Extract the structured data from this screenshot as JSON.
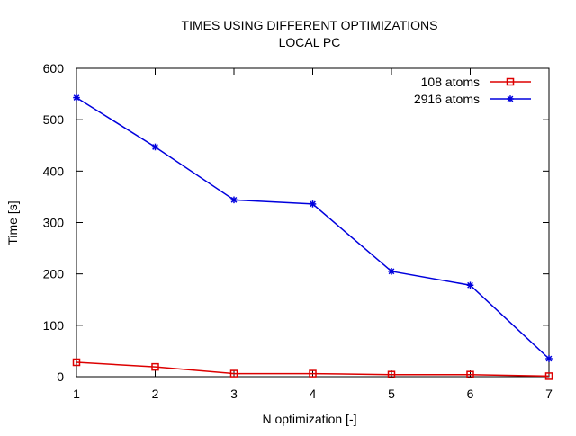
{
  "chart_data": {
    "type": "line",
    "title": "TIMES USING DIFFERENT OPTIMIZATIONS",
    "subtitle": "LOCAL PC",
    "xlabel": "N optimization [-]",
    "ylabel": "Time [s]",
    "xlim": [
      1,
      7
    ],
    "ylim": [
      0,
      600
    ],
    "xticks": [
      1,
      2,
      3,
      4,
      5,
      6,
      7
    ],
    "yticks": [
      0,
      100,
      200,
      300,
      400,
      500,
      600
    ],
    "grid": false,
    "legend_position": "top-right",
    "x": [
      1,
      2,
      3,
      4,
      5,
      6,
      7
    ],
    "series": [
      {
        "name": "108 atoms",
        "values": [
          28,
          19,
          6,
          6,
          4,
          4,
          1
        ],
        "color": "#dd0000",
        "marker": "square-open"
      },
      {
        "name": "2916 atoms",
        "values": [
          543,
          447,
          344,
          336,
          205,
          178,
          35
        ],
        "color": "#0000dd",
        "marker": "star"
      }
    ]
  }
}
